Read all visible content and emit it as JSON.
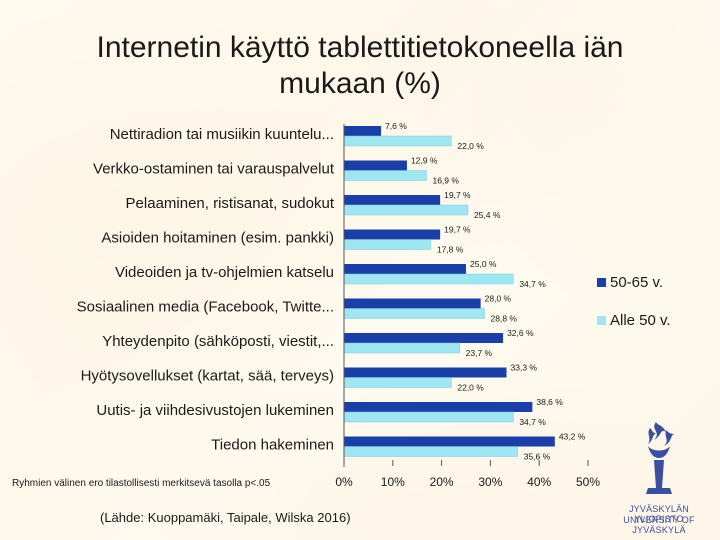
{
  "slide": {
    "title": "Internetin käyttö tablettitietokoneella iän mukaan (%)",
    "note": "Ryhmien välinen ero tilastollisesti merkitsevä tasolla p<.05",
    "source": "(Lähde: Kuoppamäki, Taipale, Wilska 2016)",
    "logo": {
      "line1": "JYVÄSKYLÄN YLIOPISTO",
      "line2": "UNIVERSITY OF JYVÄSKYLÄ"
    }
  },
  "colors": {
    "series_older": "#1a3fa8",
    "series_younger": "#9fe6f3",
    "logo": "#3a4fa0"
  },
  "chart_data": {
    "type": "bar",
    "orientation": "horizontal",
    "categories": [
      "Nettiradion tai musiikin kuuntelu...",
      "Verkko-ostaminen tai varauspalvelut",
      "Pelaaminen, ristisanat, sudokut",
      "Asioiden hoitaminen (esim. pankki)",
      "Videoiden ja tv-ohjelmien katselu",
      "Sosiaalinen media (Facebook, Twitte...",
      "Yhteydenpito (sähköposti, viestit,...",
      "Hyötysovellukset (kartat, sää, terveys)",
      "Uutis- ja viihdesivustojen lukeminen",
      "Tiedon hakeminen"
    ],
    "series": [
      {
        "name": "50-65 v.",
        "values": [
          7.6,
          12.9,
          19.7,
          19.7,
          25.0,
          28.0,
          32.6,
          33.3,
          38.6,
          43.2
        ],
        "labels": [
          "7,6 %",
          "12,9 %",
          "19,7 %",
          "19,7 %",
          "25,0 %",
          "28,0 %",
          "32,6 %",
          "33,3 %",
          "38,6 %",
          "43,2 %"
        ]
      },
      {
        "name": "Alle 50 v.",
        "values": [
          22.0,
          16.9,
          25.4,
          17.8,
          34.7,
          28.8,
          23.7,
          22.0,
          34.7,
          35.6
        ],
        "labels": [
          "22,0 %",
          "16,9 %",
          "25,4 %",
          "17,8 %",
          "34,7 %",
          "28,8 %",
          "23,7 %",
          "22,0 %",
          "34,7 %",
          "35,6 %"
        ]
      }
    ],
    "xlim": [
      0,
      50
    ],
    "xticks": [
      "0%",
      "10%",
      "20%",
      "30%",
      "40%",
      "50%"
    ],
    "legend_position": "right",
    "grid": false
  }
}
